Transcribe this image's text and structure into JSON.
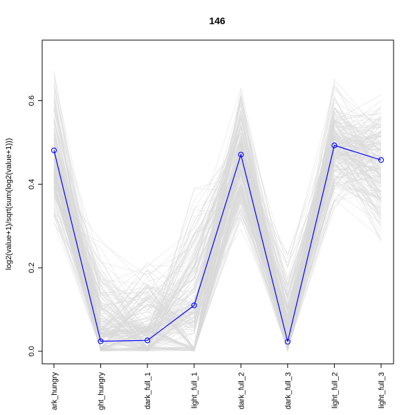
{
  "chart_data": {
    "type": "line",
    "title": "146",
    "xlabel": "",
    "ylabel": "log2(value+1)/sqrt(sum(log2(value+1)))",
    "categories": [
      "dark_hungry",
      "light_hungry",
      "dark_full_1",
      "light_full_1",
      "dark_full_2",
      "dark_full_3",
      "light_full_2",
      "light_full_3"
    ],
    "category_labels_shown": [
      "ark_hungry",
      "ght_hungry",
      "dark_full_1",
      "light_full_1",
      "dark_full_2",
      "dark_full_3",
      "light_full_2",
      "light_full_3"
    ],
    "ylim": [
      -0.03,
      0.745
    ],
    "yticks": [
      0.0,
      0.2,
      0.4,
      0.6
    ],
    "ytick_labels": [
      "0.0",
      "0.2",
      "0.4",
      "0.6"
    ],
    "highlight_series": {
      "values": [
        0.481,
        0.024,
        0.026,
        0.11,
        0.471,
        0.023,
        0.493,
        0.458
      ]
    },
    "background_series_summary": {
      "count": 200,
      "min": [
        0.26,
        0.0,
        0.0,
        0.0,
        0.23,
        0.0,
        0.3,
        0.18
      ],
      "max": [
        0.745,
        0.35,
        0.33,
        0.46,
        0.69,
        0.29,
        0.7,
        0.65
      ],
      "typical": [
        0.45,
        0.06,
        0.06,
        0.12,
        0.46,
        0.06,
        0.5,
        0.46
      ]
    },
    "grid": false,
    "legend": "none"
  },
  "colors": {
    "highlight": "#0000ff",
    "background_lines": "#d8d8d8",
    "axis": "#000000"
  }
}
